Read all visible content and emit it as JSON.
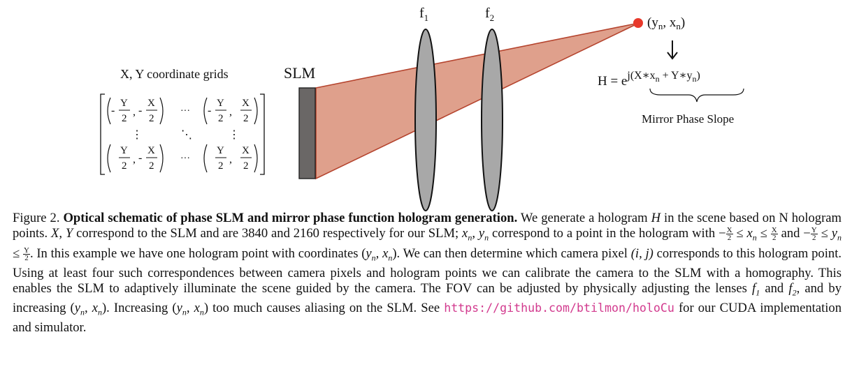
{
  "figure": {
    "grid_title": "X, Y coordinate grids",
    "slm_label": "SLM",
    "lens1_label": "f",
    "lens1_sub": "1",
    "lens2_label": "f",
    "lens2_sub": "2",
    "point_label": "(y",
    "point_sub1": "n",
    "point_mid": ", x",
    "point_sub2": "n",
    "point_end": ")",
    "arrow": "↓",
    "equation_lhs": "H = e",
    "equation_exp": "j(X∗x",
    "equation_exp_sub1": "n",
    "equation_exp_mid": " + Y∗y",
    "equation_exp_sub2": "n",
    "equation_exp_end": ")",
    "brace_label": "Mirror Phase Slope",
    "grid": {
      "y": "Y",
      "x": "X",
      "two": "2",
      "neg": "-",
      "comma": ",",
      "hdots": "···",
      "vdots": "⋮",
      "ddots": "⋱"
    },
    "colors": {
      "beam": "#dfa08c",
      "beam_stroke": "#b5442e",
      "lens": "#a8a8a8",
      "slm": "#6a6766",
      "point": "#e8392b"
    }
  },
  "caption": {
    "label": "Figure 2.",
    "bold": "Optical schematic of phase SLM and mirror phase function hologram generation.",
    "s1": "We generate a hologram",
    "H": "H",
    "s2": "in the scene based on N hologram points.",
    "XY": "X, Y",
    "s3": "correspond to the SLM and are 3840 and 2160 respectively for our SLM;",
    "xnyn": "x",
    "s4": "correspond to a point in the hologram with",
    "s5": "and",
    "s6": ". In this example we have one hologram point with coordinates",
    "s7": ". We can then determine which camera pixel",
    "ij": "(i, j)",
    "s8": "corresponds to this hologram point. Using at least four such correspondences between camera pixels and hologram points we can calibrate the camera to the SLM with a homography. This enables the SLM to adaptively illuminate the scene guided by the camera. The FOV can be adjusted by physically adjusting the lenses",
    "s9": "and",
    "s10": ", and by increasing",
    "s11": ". Increasing",
    "s12": "too much causes aliasing on the SLM. See",
    "link": "https://github.com/btilmon/holoCu",
    "s13": "for our CUDA implementation and simulator."
  }
}
